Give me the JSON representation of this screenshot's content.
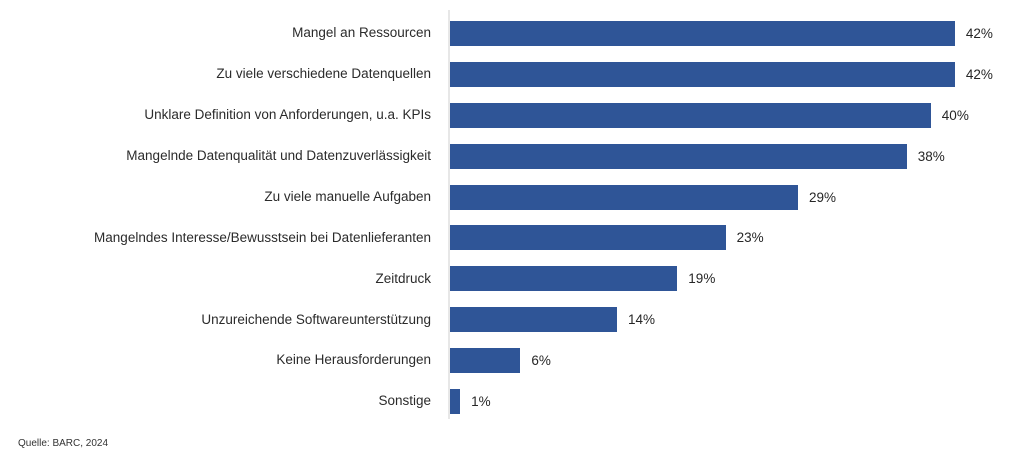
{
  "chart_data": {
    "type": "bar",
    "orientation": "horizontal",
    "title": "",
    "xlabel": "",
    "ylabel": "",
    "categories": [
      "Mangel an Ressourcen",
      "Zu viele verschiedene Datenquellen",
      "Unklare Definition von Anforderungen, u.a. KPIs",
      "Mangelnde Datenqualität und Datenzuverlässigkeit",
      "Zu viele manuelle Aufgaben",
      "Mangelndes Interesse/Bewusstsein bei Datenlieferanten",
      "Zeitdruck",
      "Unzureichende Softwareunterstützung",
      "Keine Herausforderungen",
      "Sonstige"
    ],
    "values": [
      42,
      42,
      40,
      38,
      29,
      23,
      19,
      14,
      6,
      1
    ],
    "value_labels": [
      "42%",
      "42%",
      "40%",
      "38%",
      "29%",
      "23%",
      "19%",
      "14%",
      "6%",
      "1%"
    ],
    "xlim": [
      0,
      46.5
    ],
    "grid": false,
    "legend": false,
    "data_labels": "outside-end",
    "bar_color": "#2F5597",
    "axis_line_color": "#e7e7e7",
    "category_label_color": "#2b2b2b",
    "value_label_color": "#262626"
  },
  "source": "Quelle: BARC, 2024"
}
